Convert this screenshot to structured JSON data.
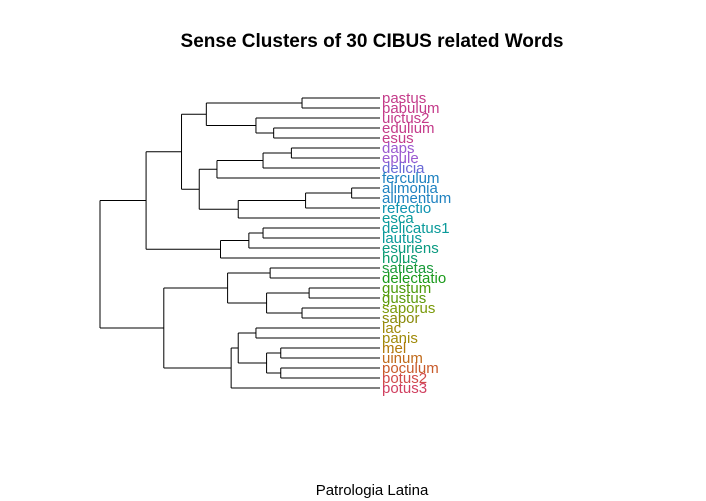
{
  "chart_data": {
    "type": "dendrogram",
    "title": "Sense Clusters of 30 CIBUS related Words",
    "xlabel": "Patrologia Latina",
    "leaves": [
      {
        "label": "pastus",
        "color": "#c43b8a"
      },
      {
        "label": "pabulum",
        "color": "#c43b8a"
      },
      {
        "label": "uictus2",
        "color": "#c43b8a"
      },
      {
        "label": "edulium",
        "color": "#c43b8a"
      },
      {
        "label": "esus",
        "color": "#c43b8a"
      },
      {
        "label": "daps",
        "color": "#9b59d0"
      },
      {
        "label": "epule",
        "color": "#9b59d0"
      },
      {
        "label": "delicia",
        "color": "#6a6ad6"
      },
      {
        "label": "ferculum",
        "color": "#1f82c0"
      },
      {
        "label": "alimonia",
        "color": "#1f82c0"
      },
      {
        "label": "alimentum",
        "color": "#1f82c0"
      },
      {
        "label": "refectio",
        "color": "#0f93b0"
      },
      {
        "label": "esca",
        "color": "#0a9a9a"
      },
      {
        "label": "delicatus1",
        "color": "#0a9a9a"
      },
      {
        "label": "lautus",
        "color": "#0a9a9a"
      },
      {
        "label": "esuriens",
        "color": "#0a9a80"
      },
      {
        "label": "holus",
        "color": "#0a9a6a"
      },
      {
        "label": "satietas",
        "color": "#1a9a3a"
      },
      {
        "label": "delectatio",
        "color": "#1a9a1a"
      },
      {
        "label": "gustum",
        "color": "#4a9a0a"
      },
      {
        "label": "gustus",
        "color": "#5a9a0a"
      },
      {
        "label": "saporus",
        "color": "#7a9a0a"
      },
      {
        "label": "sapor",
        "color": "#8a8a0a"
      },
      {
        "label": "lac",
        "color": "#a08a0a"
      },
      {
        "label": "panis",
        "color": "#a08a0a"
      },
      {
        "label": "mel",
        "color": "#b07a0a"
      },
      {
        "label": "uinum",
        "color": "#c06a1a"
      },
      {
        "label": "poculum",
        "color": "#c85a2a"
      },
      {
        "label": "potus2",
        "color": "#d04a4a"
      },
      {
        "label": "potus3",
        "color": "#d04060"
      }
    ],
    "merges": [
      {
        "a": "L0",
        "b": "L1",
        "h": 0.22
      },
      {
        "a": "L3",
        "b": "L4",
        "h": 0.3
      },
      {
        "a": "L2",
        "b": "N1",
        "h": 0.35
      },
      {
        "a": "N0",
        "b": "N2",
        "h": 0.49
      },
      {
        "a": "L5",
        "b": "L6",
        "h": 0.25
      },
      {
        "a": "N4",
        "b": "L7",
        "h": 0.33
      },
      {
        "a": "N5",
        "b": "L8",
        "h": 0.46
      },
      {
        "a": "L9",
        "b": "L10",
        "h": 0.08
      },
      {
        "a": "N7",
        "b": "L11",
        "h": 0.21
      },
      {
        "a": "N8",
        "b": "L12",
        "h": 0.4
      },
      {
        "a": "N6",
        "b": "N9",
        "h": 0.51
      },
      {
        "a": "N3",
        "b": "N10",
        "h": 0.56
      },
      {
        "a": "L13",
        "b": "L14",
        "h": 0.33
      },
      {
        "a": "N12",
        "b": "L15",
        "h": 0.37
      },
      {
        "a": "N13",
        "b": "L16",
        "h": 0.45
      },
      {
        "a": "N11",
        "b": "N14",
        "h": 0.66
      },
      {
        "a": "L17",
        "b": "L18",
        "h": 0.31
      },
      {
        "a": "L19",
        "b": "L20",
        "h": 0.2
      },
      {
        "a": "L21",
        "b": "L22",
        "h": 0.22
      },
      {
        "a": "N17",
        "b": "N18",
        "h": 0.32
      },
      {
        "a": "N16",
        "b": "N19",
        "h": 0.43
      },
      {
        "a": "L23",
        "b": "L24",
        "h": 0.35
      },
      {
        "a": "L25",
        "b": "L26",
        "h": 0.28
      },
      {
        "a": "L27",
        "b": "L28",
        "h": 0.28
      },
      {
        "a": "N22",
        "b": "N23",
        "h": 0.32
      },
      {
        "a": "N21",
        "b": "N24",
        "h": 0.4
      },
      {
        "a": "N25",
        "b": "L29",
        "h": 0.42
      },
      {
        "a": "N20",
        "b": "N26",
        "h": 0.61
      },
      {
        "a": "N27",
        "b": "N15",
        "h": 0.79
      }
    ]
  }
}
